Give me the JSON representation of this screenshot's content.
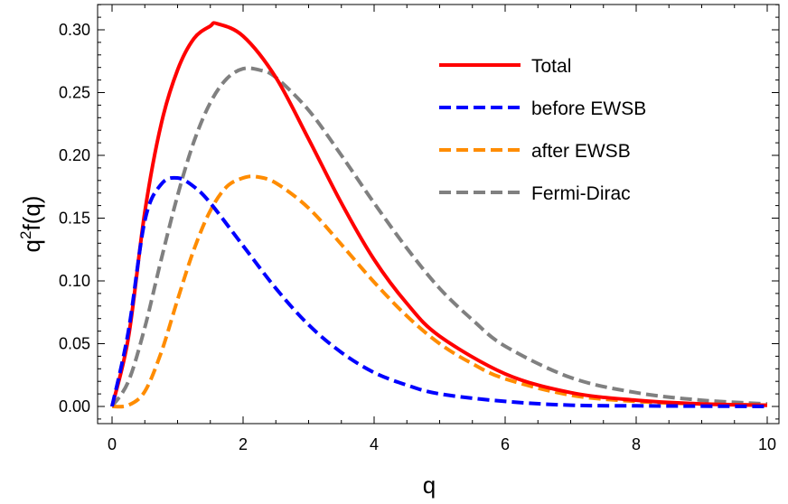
{
  "chart_data": {
    "type": "line",
    "title": "",
    "xlabel": "q",
    "ylabel_base": "q",
    "ylabel_sup": "2",
    "ylabel_rest": "f(q)",
    "xlim": [
      0,
      10
    ],
    "ylim": [
      -0.012,
      0.325
    ],
    "xticks": [
      0,
      2,
      4,
      6,
      8,
      10
    ],
    "xtick_labels": [
      "0",
      "2",
      "4",
      "6",
      "8",
      "10"
    ],
    "yticks": [
      0.0,
      0.05,
      0.1,
      0.15,
      0.2,
      0.25,
      0.3
    ],
    "ytick_labels": [
      "0.00",
      "0.05",
      "0.10",
      "0.15",
      "0.20",
      "0.25",
      "0.30"
    ],
    "grid": false,
    "legend_position": "top-right",
    "series": [
      {
        "name": "Total",
        "color": "#ff0000",
        "style": "solid",
        "x": [
          0,
          0.25,
          0.5,
          0.75,
          1.0,
          1.25,
          1.5,
          1.6,
          2.0,
          2.5,
          3.0,
          3.5,
          4.0,
          4.5,
          5.0,
          6.0,
          7.0,
          8.0,
          9.0,
          10.0
        ],
        "y": [
          0.0,
          0.055,
          0.155,
          0.225,
          0.268,
          0.293,
          0.303,
          0.305,
          0.295,
          0.262,
          0.213,
          0.162,
          0.117,
          0.082,
          0.056,
          0.026,
          0.011,
          0.005,
          0.002,
          0.001
        ]
      },
      {
        "name": "before EWSB",
        "color": "#0000ff",
        "style": "dashed",
        "x": [
          0,
          0.25,
          0.5,
          0.75,
          1.0,
          1.25,
          1.5,
          2.0,
          2.5,
          3.0,
          3.5,
          4.0,
          4.5,
          5.0,
          6.0,
          7.0,
          8.0,
          10.0
        ],
        "y": [
          0.0,
          0.06,
          0.148,
          0.177,
          0.182,
          0.175,
          0.162,
          0.128,
          0.094,
          0.065,
          0.043,
          0.027,
          0.017,
          0.01,
          0.004,
          0.001,
          0.0005,
          0.0
        ]
      },
      {
        "name": "after EWSB",
        "color": "#ff8c00",
        "style": "dashed",
        "x": [
          0,
          0.25,
          0.5,
          0.75,
          1.0,
          1.25,
          1.5,
          1.75,
          2.0,
          2.2,
          2.5,
          3.0,
          3.5,
          4.0,
          4.5,
          5.0,
          5.5,
          6.0,
          7.0,
          8.0,
          9.0,
          10.0
        ],
        "y": [
          0.0,
          0.001,
          0.012,
          0.043,
          0.085,
          0.125,
          0.156,
          0.175,
          0.182,
          0.183,
          0.178,
          0.158,
          0.129,
          0.099,
          0.072,
          0.05,
          0.034,
          0.022,
          0.009,
          0.004,
          0.002,
          0.001
        ]
      },
      {
        "name": "Fermi-Dirac",
        "color": "#808080",
        "style": "dashed",
        "x": [
          0,
          0.25,
          0.5,
          0.75,
          1.0,
          1.25,
          1.5,
          1.75,
          2.0,
          2.25,
          2.5,
          3.0,
          3.5,
          4.0,
          4.5,
          5.0,
          5.5,
          6.0,
          7.0,
          8.0,
          9.0,
          10.0
        ],
        "y": [
          0.0,
          0.02,
          0.063,
          0.117,
          0.168,
          0.211,
          0.242,
          0.261,
          0.269,
          0.268,
          0.262,
          0.236,
          0.2,
          0.162,
          0.126,
          0.094,
          0.069,
          0.048,
          0.023,
          0.011,
          0.005,
          0.002
        ]
      }
    ]
  }
}
